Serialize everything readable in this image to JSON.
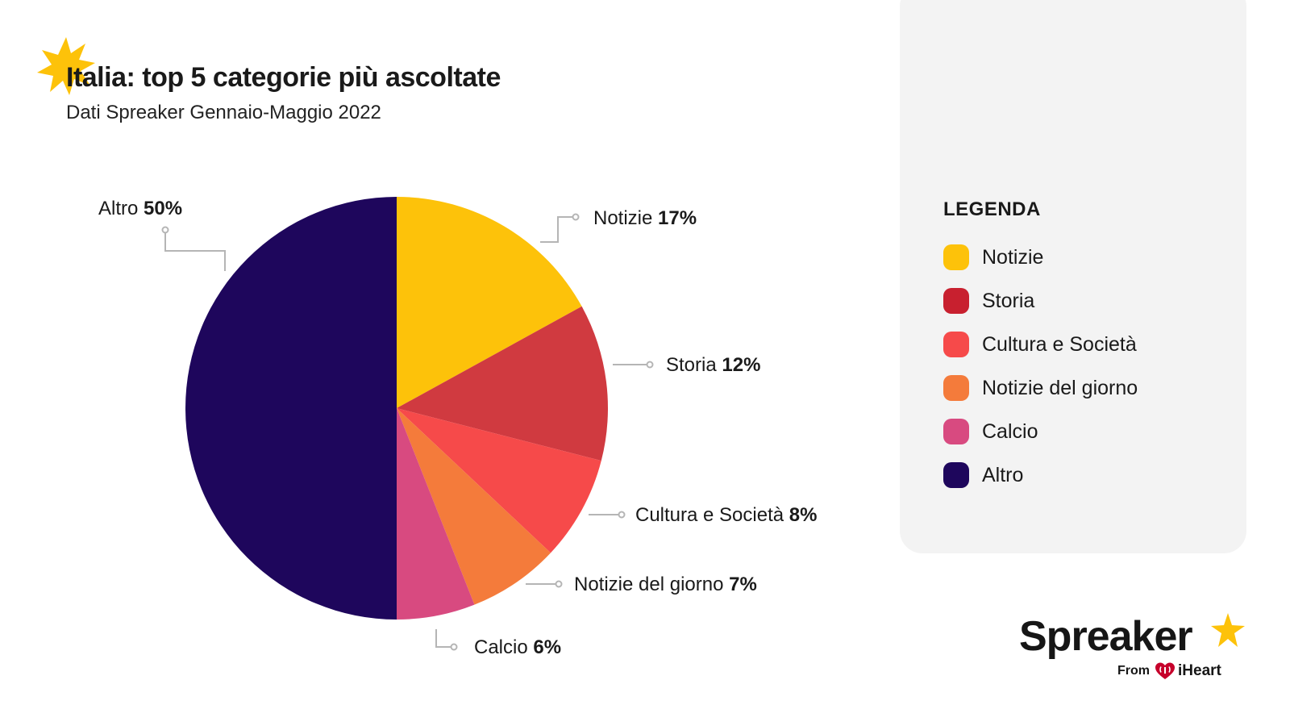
{
  "header": {
    "title": "Italia: top 5 categorie più ascoltate",
    "subtitle": "Dati Spreaker Gennaio-Maggio 2022"
  },
  "chart_data": {
    "type": "pie",
    "title": "Italia: top 5 categorie più ascoltate",
    "subtitle": "Dati Spreaker Gennaio-Maggio 2022",
    "categories": [
      "Notizie",
      "Storia",
      "Cultura e Società",
      "Notizie del giorno",
      "Calcio",
      "Altro"
    ],
    "values": [
      17,
      12,
      8,
      7,
      6,
      50
    ],
    "unit": "%",
    "colors": [
      "#FDC20A",
      "#D03A40",
      "#F64A4A",
      "#F47B3B",
      "#D84A80",
      "#1E065C"
    ],
    "slice_labels": [
      {
        "name": "Notizie",
        "pct": "17%"
      },
      {
        "name": "Storia",
        "pct": "12%"
      },
      {
        "name": "Cultura e Società",
        "pct": "8%"
      },
      {
        "name": "Notizie del giorno",
        "pct": "7%"
      },
      {
        "name": "Calcio",
        "pct": "6%"
      },
      {
        "name": "Altro",
        "pct": "50%"
      }
    ]
  },
  "legend": {
    "title": "LEGENDA",
    "items": [
      {
        "label": "Notizie",
        "color": "#FDC20A"
      },
      {
        "label": "Storia",
        "color": "#C8202F"
      },
      {
        "label": "Cultura e Società",
        "color": "#F64A4A"
      },
      {
        "label": "Notizie del giorno",
        "color": "#F47B3B"
      },
      {
        "label": "Calcio",
        "color": "#D84A80"
      },
      {
        "label": "Altro",
        "color": "#1E065C"
      }
    ]
  },
  "brand": {
    "name": "Spreaker",
    "from": "From",
    "partner": "iHeart",
    "accent_color": "#FDC20A"
  }
}
